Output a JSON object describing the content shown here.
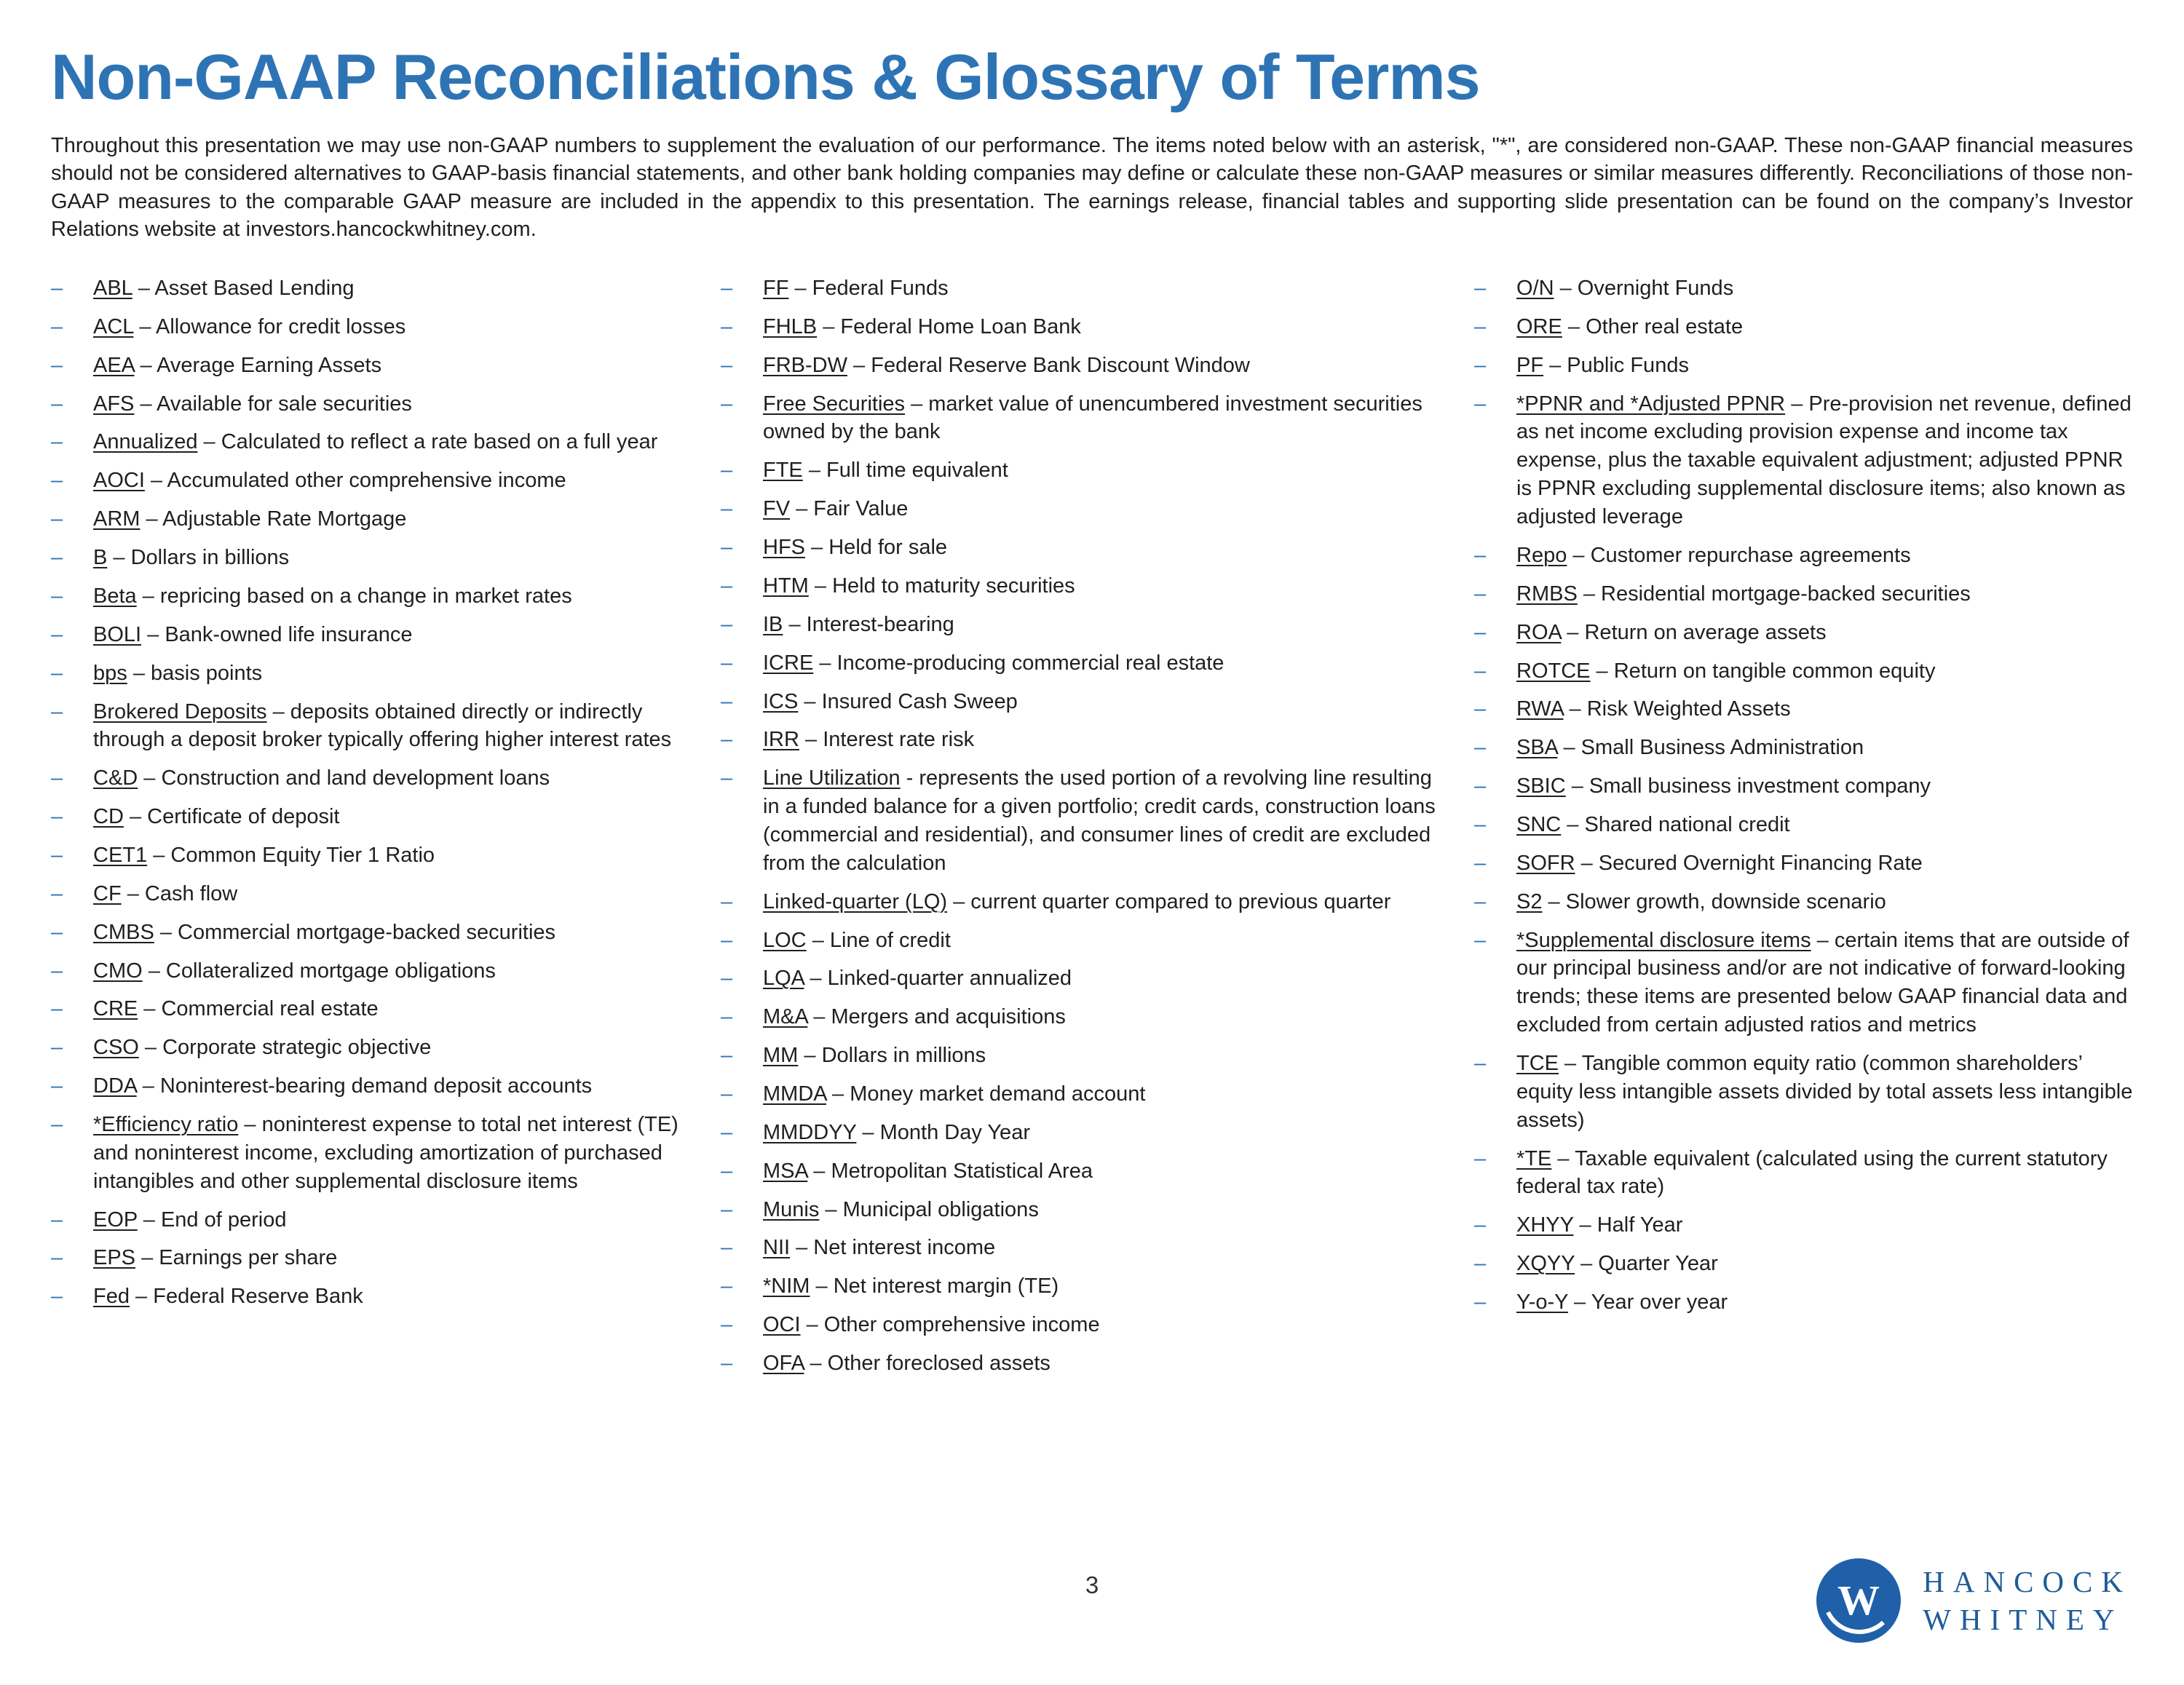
{
  "page": {
    "title": "Non-GAAP Reconciliations & Glossary of Terms",
    "intro": "Throughout this presentation we may use non-GAAP numbers to supplement the evaluation of our performance. The items noted below with an asterisk, \"*\", are considered non-GAAP. These non-GAAP financial measures should not be considered alternatives to GAAP-basis financial statements, and other bank holding companies may define or calculate these non-GAAP measures or similar measures differently. Reconciliations of those non-GAAP measures to the comparable GAAP measure are included in the appendix to this presentation. The earnings release, financial tables and supporting slide presentation can be found on the company’s Investor Relations website at investors.hancockwhitney.com.",
    "page_number": "3"
  },
  "colors": {
    "accent": "#2E74B5",
    "text": "#1F1F1F",
    "logo_blue": "#2060A9"
  },
  "logo": {
    "monogram": "W",
    "line1": "HANCOCK",
    "line2": "WHITNEY"
  },
  "glossary": {
    "columns": [
      {
        "items": [
          {
            "term": "ABL",
            "def": "Asset Based Lending"
          },
          {
            "term": "ACL",
            "def": "Allowance for credit losses"
          },
          {
            "term": "AEA",
            "def": "Average Earning Assets"
          },
          {
            "term": "AFS",
            "def": "Available for sale securities"
          },
          {
            "term": "Annualized",
            "def": "Calculated to reflect a rate based on a full year"
          },
          {
            "term": "AOCI",
            "def": "Accumulated other comprehensive income"
          },
          {
            "term": "ARM",
            "def": "Adjustable Rate Mortgage"
          },
          {
            "term": "B",
            "def": "Dollars in billions"
          },
          {
            "term": "Beta",
            "def": "repricing based on a change in market rates"
          },
          {
            "term": "BOLI",
            "def": "Bank-owned life insurance"
          },
          {
            "term": "bps",
            "def": "basis points"
          },
          {
            "term": "Brokered Deposits",
            "def": "deposits obtained directly or indirectly through a deposit broker typically offering higher interest rates"
          },
          {
            "term": "C&D",
            "def": "Construction and land development loans"
          },
          {
            "term": "CD",
            "def": "Certificate of deposit"
          },
          {
            "term": "CET1",
            "def": "Common Equity Tier 1 Ratio"
          },
          {
            "term": "CF",
            "def": "Cash flow"
          },
          {
            "term": "CMBS",
            "def": "Commercial mortgage-backed securities"
          },
          {
            "term": "CMO",
            "def": "Collateralized mortgage obligations"
          },
          {
            "term": "CRE",
            "def": "Commercial real estate"
          },
          {
            "term": "CSO",
            "def": "Corporate strategic objective"
          },
          {
            "term": "DDA",
            "def": "Noninterest-bearing demand deposit accounts"
          },
          {
            "term": "*Efficiency ratio",
            "def": "noninterest expense to total net interest (TE) and noninterest income, excluding amortization of purchased intangibles and other supplemental disclosure items"
          },
          {
            "term": "EOP",
            "def": "End of period"
          },
          {
            "term": "EPS",
            "def": "Earnings per share"
          },
          {
            "term": "Fed",
            "def": "Federal Reserve Bank"
          }
        ]
      },
      {
        "items": [
          {
            "term": "FF",
            "def": "Federal Funds"
          },
          {
            "term": "FHLB",
            "def": "Federal Home Loan Bank"
          },
          {
            "term": "FRB-DW",
            "def": "Federal Reserve Bank Discount Window"
          },
          {
            "term": "Free Securities",
            "def": "market value of unencumbered investment securities owned by the bank"
          },
          {
            "term": "FTE",
            "def": "Full time equivalent"
          },
          {
            "term": "FV",
            "def": "Fair Value"
          },
          {
            "term": "HFS",
            "def": "Held for sale"
          },
          {
            "term": "HTM",
            "def": "Held to maturity securities"
          },
          {
            "term": "IB",
            "def": "Interest-bearing"
          },
          {
            "term": "ICRE",
            "def": "Income-producing commercial real estate"
          },
          {
            "term": "ICS",
            "def": "Insured Cash Sweep"
          },
          {
            "term": "IRR",
            "def": "Interest rate risk"
          },
          {
            "term": "Line Utilization",
            "sep": "-",
            "def": "represents the used portion of a revolving line resulting in a funded balance for a given portfolio; credit cards, construction loans (commercial and residential), and consumer lines of credit are excluded from the calculation"
          },
          {
            "term": "Linked-quarter (LQ)",
            "def": "current quarter compared to previous quarter"
          },
          {
            "term": "LOC",
            "def": "Line of credit"
          },
          {
            "term": "LQA",
            "def": "Linked-quarter annualized"
          },
          {
            "term": "M&A",
            "def": "Mergers and acquisitions"
          },
          {
            "term": "MM",
            "def": "Dollars in millions"
          },
          {
            "term": "MMDA",
            "def": "Money market demand account"
          },
          {
            "term": "MMDDYY",
            "def": "Month Day Year"
          },
          {
            "term": "MSA",
            "def": "Metropolitan Statistical Area"
          },
          {
            "term": "Munis",
            "def": "Municipal obligations"
          },
          {
            "term": "NII",
            "def": "Net interest income"
          },
          {
            "term": "*NIM",
            "def": "Net interest margin (TE)"
          },
          {
            "term": "OCI",
            "def": "Other comprehensive income"
          },
          {
            "term": "OFA",
            "def": "Other foreclosed assets"
          }
        ]
      },
      {
        "items": [
          {
            "term": "O/N",
            "def": "Overnight Funds"
          },
          {
            "term": "ORE",
            "def": "Other real estate"
          },
          {
            "term": "PF",
            "def": "Public Funds"
          },
          {
            "term": "*PPNR and *Adjusted PPNR",
            "def": "Pre-provision net revenue, defined as net income excluding provision expense and income tax expense, plus the taxable equivalent adjustment; adjusted PPNR is PPNR excluding supplemental disclosure items; also known as adjusted leverage"
          },
          {
            "term": "Repo",
            "def": "Customer repurchase agreements"
          },
          {
            "term": "RMBS",
            "def": "Residential mortgage-backed securities"
          },
          {
            "term": "ROA",
            "def": "Return on average assets"
          },
          {
            "term": "ROTCE",
            "def": "Return on tangible common equity"
          },
          {
            "term": "RWA",
            "def": "Risk Weighted Assets"
          },
          {
            "term": "SBA",
            "def": "Small Business Administration"
          },
          {
            "term": "SBIC",
            "def": "Small business investment company"
          },
          {
            "term": "SNC",
            "def": "Shared national credit"
          },
          {
            "term": "SOFR",
            "def": "Secured Overnight Financing Rate"
          },
          {
            "term": "S2",
            "def": "Slower growth, downside scenario"
          },
          {
            "term": "*Supplemental disclosure items",
            "def": "certain items that are outside of our principal business and/or are not indicative of forward-looking trends; these items are presented below GAAP financial data and excluded from certain adjusted ratios and metrics"
          },
          {
            "term": "TCE",
            "def": "Tangible common equity ratio (common shareholders’ equity less intangible assets divided by total assets less intangible assets)"
          },
          {
            "term": "*TE",
            "def": "Taxable equivalent (calculated using the current statutory federal tax rate)"
          },
          {
            "term": "XHYY",
            "def": "Half Year"
          },
          {
            "term": "XQYY",
            "def": "Quarter Year"
          },
          {
            "term": "Y-o-Y",
            "def": "Year over year"
          }
        ]
      }
    ]
  }
}
